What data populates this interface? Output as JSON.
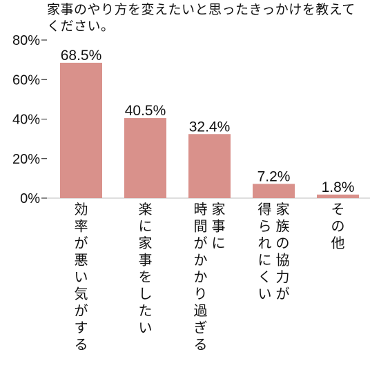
{
  "chart_data": {
    "type": "bar",
    "title": "家事のやり方を変えたいと思ったきっかけを教えてください。",
    "categories": [
      "効率が悪い気がする",
      "楽に家事をしたい",
      "家事に時間がかかり過ぎる",
      "家族の協力が得られにくい",
      "その他"
    ],
    "category_lines": [
      [
        "効率が悪い気がする"
      ],
      [
        "楽に家事をしたい"
      ],
      [
        "家事に",
        "時間がかかり過ぎる"
      ],
      [
        "家族の協力が",
        "得られにくい"
      ],
      [
        "その他"
      ]
    ],
    "values": [
      68.5,
      40.5,
      32.4,
      7.2,
      1.8
    ],
    "value_labels": [
      "68.5%",
      "40.5%",
      "32.4%",
      "7.2%",
      "1.8%"
    ],
    "yticks": [
      0,
      20,
      40,
      60,
      80
    ],
    "ytick_labels": [
      "0%",
      "20%",
      "40%",
      "60%",
      "80%"
    ],
    "ylim": [
      0,
      80
    ],
    "xlabel": "",
    "ylabel": "",
    "grid": false,
    "bar_color": "#d9918b",
    "text_color": "#111111"
  }
}
